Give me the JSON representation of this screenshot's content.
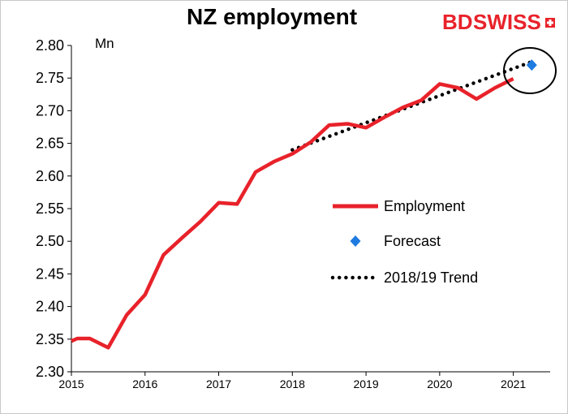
{
  "brand": {
    "logo_text_1": "BD",
    "logo_text_2": "SWISS",
    "color": "#e8222a"
  },
  "chart_data": {
    "type": "line",
    "title": "NZ employment",
    "ylabel": "Mn",
    "xlabel": "",
    "ylim": [
      2.3,
      2.8
    ],
    "y_ticks": [
      "2.30",
      "2.35",
      "2.40",
      "2.45",
      "2.50",
      "2.55",
      "2.60",
      "2.65",
      "2.70",
      "2.75",
      "2.80"
    ],
    "xlim": [
      2015,
      2021.5
    ],
    "x_ticks": [
      "2015",
      "2016",
      "2017",
      "2018",
      "2019",
      "2020",
      "2021"
    ],
    "grid": false,
    "legend_position": "center-right",
    "series": [
      {
        "name": "Employment",
        "style": "solid-line",
        "color": "#e8222a",
        "points": [
          [
            2015.0,
            2.347
          ],
          [
            2015.08,
            2.351
          ],
          [
            2015.25,
            2.351
          ],
          [
            2015.5,
            2.337
          ],
          [
            2015.75,
            2.387
          ],
          [
            2016.0,
            2.418
          ],
          [
            2016.25,
            2.479
          ],
          [
            2016.5,
            2.505
          ],
          [
            2016.75,
            2.53
          ],
          [
            2017.0,
            2.559
          ],
          [
            2017.25,
            2.557
          ],
          [
            2017.5,
            2.606
          ],
          [
            2017.75,
            2.622
          ],
          [
            2018.0,
            2.634
          ],
          [
            2018.25,
            2.652
          ],
          [
            2018.5,
            2.678
          ],
          [
            2018.75,
            2.68
          ],
          [
            2019.0,
            2.674
          ],
          [
            2019.25,
            2.69
          ],
          [
            2019.5,
            2.705
          ],
          [
            2019.75,
            2.716
          ],
          [
            2020.0,
            2.741
          ],
          [
            2020.25,
            2.735
          ],
          [
            2020.5,
            2.718
          ],
          [
            2020.75,
            2.735
          ],
          [
            2021.0,
            2.749
          ]
        ]
      },
      {
        "name": "Forecast",
        "style": "diamond-marker",
        "color": "#1e7be0",
        "points": [
          [
            2021.25,
            2.77
          ]
        ]
      },
      {
        "name": "2018/19 Trend",
        "style": "dotted-line",
        "color": "#000000",
        "points": [
          [
            2018.0,
            2.64
          ],
          [
            2021.25,
            2.775
          ]
        ]
      }
    ],
    "annotations": [
      {
        "type": "ellipse",
        "description": "circle around forecast point"
      }
    ]
  }
}
